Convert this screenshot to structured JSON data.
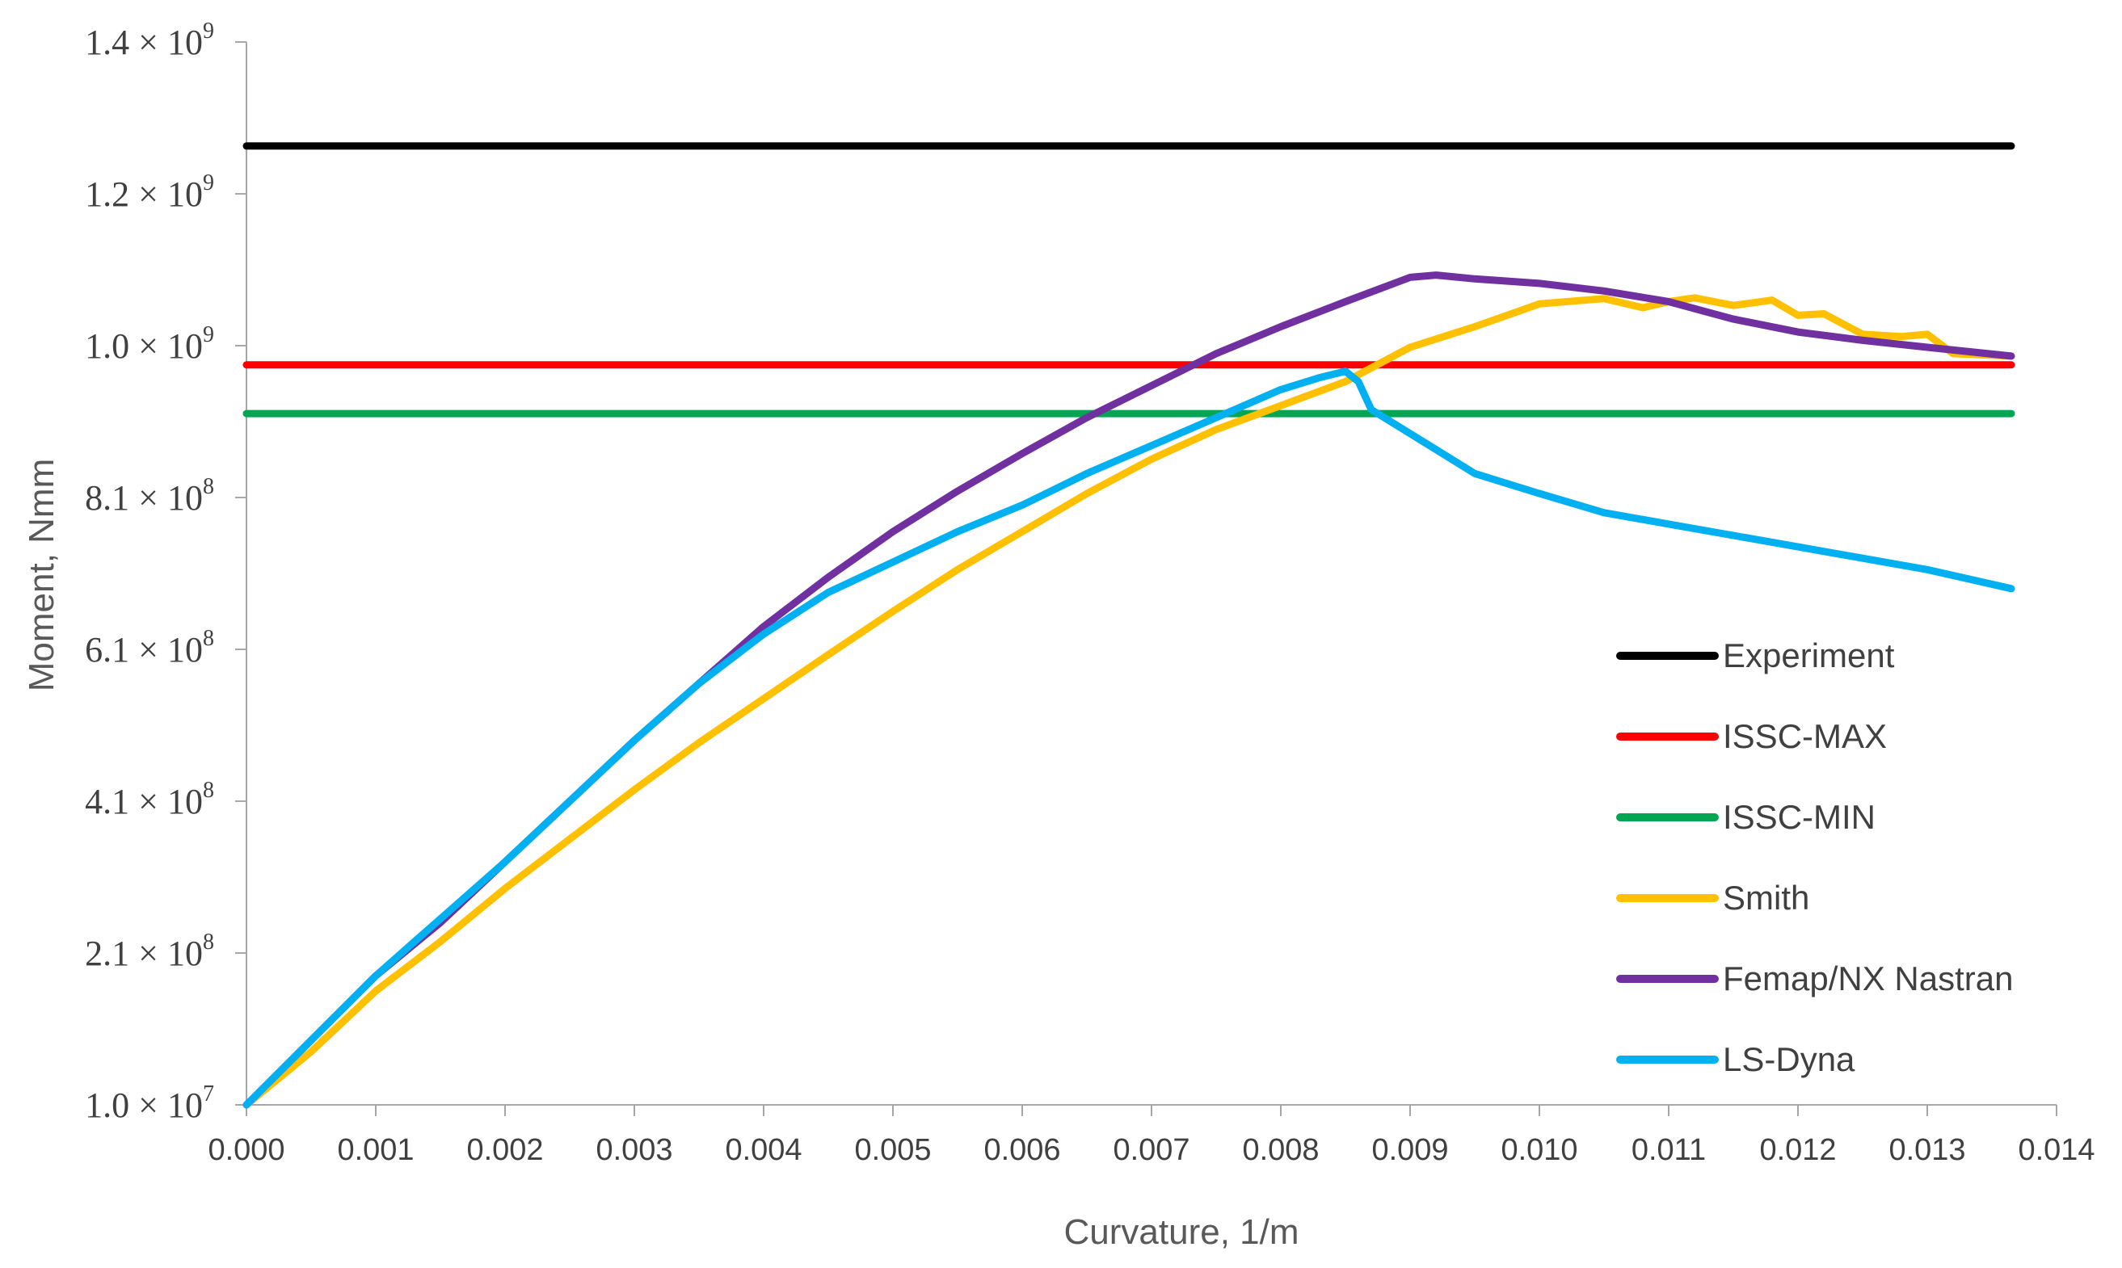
{
  "chart_data": {
    "type": "line",
    "title": "",
    "xlabel": "Curvature, 1/m",
    "ylabel": "Moment, Nmm",
    "xlim": [
      0,
      0.014
    ],
    "ylim": [
      10000000,
      1400000000
    ],
    "x_ticks": [
      0,
      0.001,
      0.002,
      0.003,
      0.004,
      0.005,
      0.006,
      0.007,
      0.008,
      0.009,
      0.01,
      0.011,
      0.012,
      0.013,
      0.014
    ],
    "x_tick_labels": [
      "0.000",
      "0.001",
      "0.002",
      "0.003",
      "0.004",
      "0.005",
      "0.006",
      "0.007",
      "0.008",
      "0.009",
      "0.010",
      "0.011",
      "0.012",
      "0.013",
      "0.014"
    ],
    "y_ticks": [
      10000000,
      210000000,
      410000000,
      610000000,
      810000000,
      1000000000,
      1200000000,
      1400000000
    ],
    "y_tick_labels": [
      {
        "mantissa": "1.0",
        "times": "×",
        "base": "10",
        "exp": "7"
      },
      {
        "mantissa": "2.1",
        "times": "×",
        "base": "10",
        "exp": "8"
      },
      {
        "mantissa": "4.1",
        "times": "×",
        "base": "10",
        "exp": "8"
      },
      {
        "mantissa": "6.1",
        "times": "×",
        "base": "10",
        "exp": "8"
      },
      {
        "mantissa": "8.1",
        "times": "×",
        "base": "10",
        "exp": "8"
      },
      {
        "mantissa": "1.0",
        "times": "×",
        "base": "10",
        "exp": "9"
      },
      {
        "mantissa": "1.2",
        "times": "×",
        "base": "10",
        "exp": "9"
      },
      {
        "mantissa": "1.4",
        "times": "×",
        "base": "10",
        "exp": "9"
      }
    ],
    "grid": false,
    "legend_position": "right",
    "series": [
      {
        "name": "Experiment",
        "color": "#000000",
        "x": [
          0,
          0.01365
        ],
        "y": [
          1263000000,
          1263000000
        ]
      },
      {
        "name": "ISSC-MAX",
        "color": "#ff0000",
        "x": [
          0,
          0.01365
        ],
        "y": [
          976000000,
          976000000
        ]
      },
      {
        "name": "ISSC-MIN",
        "color": "#00a651",
        "x": [
          0,
          0.01365
        ],
        "y": [
          915000000,
          915000000
        ]
      },
      {
        "name": "Smith",
        "color": "#ffc000",
        "x": [
          0,
          0.0005,
          0.001,
          0.0015,
          0.002,
          0.0025,
          0.003,
          0.0035,
          0.004,
          0.0045,
          0.005,
          0.0055,
          0.006,
          0.0065,
          0.007,
          0.0075,
          0.008,
          0.0085,
          0.009,
          0.0095,
          0.01,
          0.0105,
          0.0108,
          0.011,
          0.0112,
          0.0115,
          0.0118,
          0.012,
          0.0122,
          0.0125,
          0.0128,
          0.013,
          0.0132,
          0.01365
        ],
        "y": [
          10000000,
          80000000,
          160000000,
          225000000,
          295000000,
          360000000,
          425000000,
          487000000,
          545000000,
          603000000,
          660000000,
          715000000,
          765000000,
          815000000,
          858000000,
          895000000,
          925000000,
          955000000,
          998000000,
          1025000000,
          1055000000,
          1062000000,
          1050000000,
          1058000000,
          1063000000,
          1053000000,
          1060000000,
          1040000000,
          1042000000,
          1015000000,
          1012000000,
          1015000000,
          990000000,
          987000000
        ]
      },
      {
        "name": "Femap/NX Nastran",
        "color": "#7030a0",
        "x": [
          0,
          0.0005,
          0.001,
          0.0015,
          0.002,
          0.0025,
          0.003,
          0.0035,
          0.004,
          0.0045,
          0.005,
          0.0055,
          0.006,
          0.0065,
          0.007,
          0.0075,
          0.008,
          0.0085,
          0.009,
          0.0092,
          0.0095,
          0.01,
          0.0105,
          0.011,
          0.0115,
          0.012,
          0.0125,
          0.013,
          0.01365
        ],
        "y": [
          10000000,
          95000000,
          180000000,
          250000000,
          330000000,
          410000000,
          490000000,
          565000000,
          640000000,
          705000000,
          765000000,
          818000000,
          865000000,
          910000000,
          950000000,
          990000000,
          1025000000,
          1058000000,
          1090000000,
          1093000000,
          1088000000,
          1082000000,
          1072000000,
          1058000000,
          1035000000,
          1018000000,
          1007000000,
          998000000,
          987000000
        ]
      },
      {
        "name": "LS-Dyna",
        "color": "#00b0f0",
        "x": [
          0,
          0.0005,
          0.001,
          0.0015,
          0.002,
          0.0025,
          0.003,
          0.0035,
          0.004,
          0.0045,
          0.005,
          0.0055,
          0.006,
          0.0065,
          0.007,
          0.0075,
          0.008,
          0.0083,
          0.0085,
          0.0086,
          0.0087,
          0.0088,
          0.009,
          0.0095,
          0.01,
          0.0105,
          0.011,
          0.0115,
          0.012,
          0.0125,
          0.013,
          0.01365
        ],
        "y": [
          10000000,
          95000000,
          180000000,
          255000000,
          330000000,
          410000000,
          490000000,
          565000000,
          630000000,
          685000000,
          725000000,
          765000000,
          800000000,
          840000000,
          875000000,
          910000000,
          945000000,
          960000000,
          968000000,
          955000000,
          920000000,
          910000000,
          890000000,
          840000000,
          815000000,
          790000000,
          775000000,
          760000000,
          745000000,
          730000000,
          715000000,
          690000000
        ]
      }
    ]
  }
}
